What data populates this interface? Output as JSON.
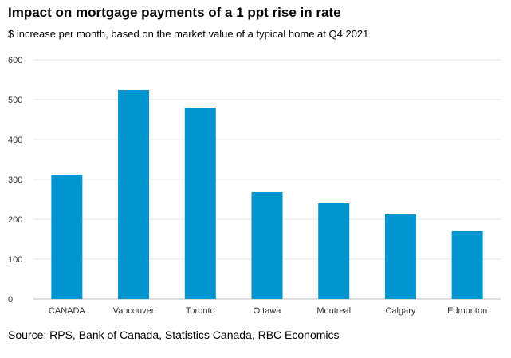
{
  "title": "Impact on mortgage payments of a 1 ppt rise in rate",
  "subtitle": "$ increase per month, based on the market value of a typical home at Q4 2021",
  "source": "Source: RPS, Bank of Canada, Statistics Canada, RBC Economics",
  "colors": {
    "bar": "#0095cf",
    "grid": "#e3e3e3",
    "axis": "#bdbdbd"
  },
  "chart_data": {
    "type": "bar",
    "title": "Impact on mortgage payments of a 1 ppt rise in rate",
    "subtitle": "$ increase per month, based on the market value of a typical home at Q4 2021",
    "xlabel": "",
    "ylabel": "",
    "categories": [
      "CANADA",
      "Vancouver",
      "Toronto",
      "Ottawa",
      "Montreal",
      "Calgary",
      "Edmonton"
    ],
    "values": [
      312,
      524,
      480,
      268,
      240,
      212,
      170
    ],
    "ylim": [
      0,
      600
    ],
    "yticks": [
      0,
      100,
      200,
      300,
      400,
      500,
      600
    ],
    "grid": true,
    "legend": "none"
  }
}
